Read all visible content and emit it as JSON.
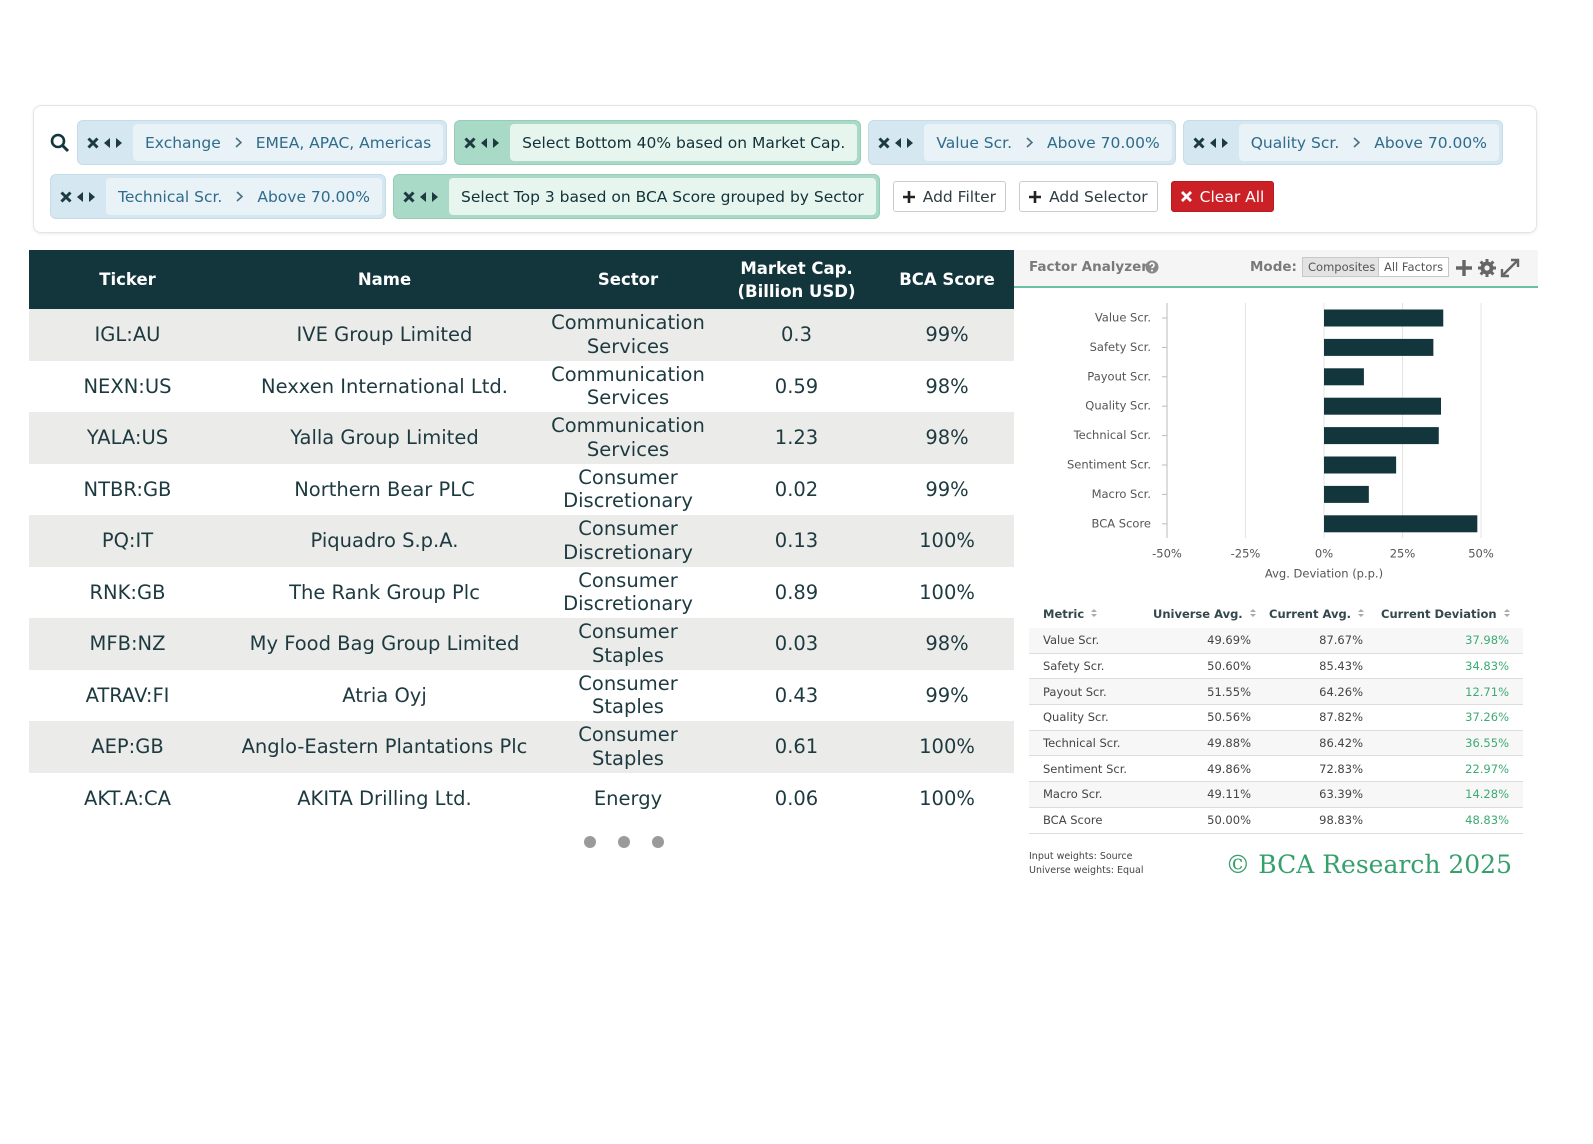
{
  "filters": [
    {
      "field": "Exchange",
      "value": "EMEA, APAC, Americas"
    },
    {
      "text": "Select Bottom 40% based on Market Cap."
    },
    {
      "field": "Value Scr.",
      "value": "Above 70.00%"
    },
    {
      "field": "Quality Scr.",
      "value": "Above 70.00%"
    },
    {
      "field": "Technical Scr.",
      "value": "Above 70.00%"
    },
    {
      "text": "Select Top 3 based on BCA Score grouped by Sector"
    }
  ],
  "buttons": {
    "add_filter": "Add Filter",
    "add_selector": "Add Selector",
    "clear_all": "Clear All"
  },
  "table": {
    "columns": [
      "Ticker",
      "Name",
      "Sector",
      "Market Cap. (Billion USD)",
      "BCA Score"
    ],
    "rows": [
      [
        "IGL:AU",
        "IVE Group Limited",
        "Communication Services",
        "0.3",
        "99%"
      ],
      [
        "NEXN:US",
        "Nexxen International Ltd.",
        "Communication Services",
        "0.59",
        "98%"
      ],
      [
        "YALA:US",
        "Yalla Group Limited",
        "Communication Services",
        "1.23",
        "98%"
      ],
      [
        "NTBR:GB",
        "Northern Bear PLC",
        "Consumer Discretionary",
        "0.02",
        "99%"
      ],
      [
        "PQ:IT",
        "Piquadro S.p.A.",
        "Consumer Discretionary",
        "0.13",
        "100%"
      ],
      [
        "RNK:GB",
        "The Rank Group Plc",
        "Consumer Discretionary",
        "0.89",
        "100%"
      ],
      [
        "MFB:NZ",
        "My Food Bag Group Limited",
        "Consumer Staples",
        "0.03",
        "98%"
      ],
      [
        "ATRAV:FI",
        "Atria Oyj",
        "Consumer Staples",
        "0.43",
        "99%"
      ],
      [
        "AEP:GB",
        "Anglo-Eastern Plantations Plc",
        "Consumer Staples",
        "0.61",
        "100%"
      ],
      [
        "AKT.A:CA",
        "AKITA Drilling Ltd.",
        "Energy",
        "0.06",
        "100%"
      ]
    ]
  },
  "factor_analyzer": {
    "title": "Factor Analyzer",
    "mode_label": "Mode:",
    "modes": [
      "Composites",
      "All Factors"
    ],
    "chart_data": {
      "type": "bar",
      "orientation": "horizontal",
      "categories": [
        "Value Scr.",
        "Safety Scr.",
        "Payout Scr.",
        "Quality Scr.",
        "Technical Scr.",
        "Sentiment Scr.",
        "Macro Scr.",
        "BCA Score"
      ],
      "values": [
        37.98,
        34.83,
        12.71,
        37.26,
        36.55,
        22.97,
        14.28,
        48.83
      ],
      "color": "#12363c",
      "xlim": [
        -50,
        50
      ],
      "xticks": [
        {
          "value": -50,
          "label": "-50%"
        },
        {
          "value": -25,
          "label": "-25%"
        },
        {
          "value": 0,
          "label": "0%"
        },
        {
          "value": 25,
          "label": "25%"
        },
        {
          "value": 50,
          "label": "50%"
        }
      ],
      "xlabel": "Avg. Deviation (p.p.)",
      "grid": true
    },
    "metrics_table": {
      "columns": [
        "Metric",
        "Universe Avg.",
        "Current Avg.",
        "Current Deviation"
      ],
      "rows": [
        [
          "Value Scr.",
          "49.69%",
          "87.67%",
          "37.98%"
        ],
        [
          "Safety Scr.",
          "50.60%",
          "85.43%",
          "34.83%"
        ],
        [
          "Payout Scr.",
          "51.55%",
          "64.26%",
          "12.71%"
        ],
        [
          "Quality Scr.",
          "50.56%",
          "87.82%",
          "37.26%"
        ],
        [
          "Technical Scr.",
          "49.88%",
          "86.42%",
          "36.55%"
        ],
        [
          "Sentiment Scr.",
          "49.86%",
          "72.83%",
          "22.97%"
        ],
        [
          "Macro Scr.",
          "49.11%",
          "63.39%",
          "14.28%"
        ],
        [
          "BCA Score",
          "50.00%",
          "98.83%",
          "48.83%"
        ]
      ]
    },
    "notes": [
      "Input weights: Source",
      "Universe weights: Equal"
    ],
    "copyright": "© BCA Research 2025"
  }
}
